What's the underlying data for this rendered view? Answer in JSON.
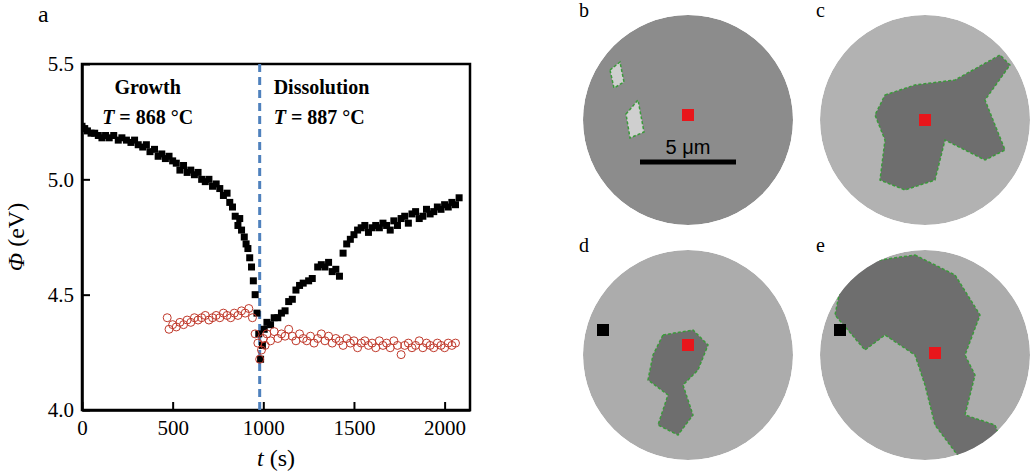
{
  "chart_data": {
    "type": "scatter",
    "panel_label": "a",
    "x_label": "t (s)",
    "y_label": "Φ (eV)",
    "xlim": [
      0,
      2140
    ],
    "ylim": [
      4.0,
      5.5
    ],
    "xticks": [
      0,
      500,
      1000,
      1500,
      2000
    ],
    "yticks": [
      {
        "value": 4.0,
        "label": "4.0"
      },
      4.5,
      {
        "value": 5.0,
        "label": "5.0"
      },
      5.5
    ],
    "regions": [
      {
        "label": "Growth",
        "temperature_label": "T = 868 °C"
      },
      {
        "label": "Dissolution",
        "temperature_label": "T = 887 °C"
      }
    ],
    "vlines": [
      {
        "x": 980,
        "color": "#4f81bd",
        "line_style": "dashed"
      }
    ],
    "series": [
      {
        "color": "#000000",
        "marker": "square",
        "x": [
          0,
          15,
          30,
          50,
          70,
          90,
          110,
          130,
          150,
          175,
          200,
          220,
          245,
          270,
          290,
          310,
          335,
          355,
          375,
          400,
          420,
          440,
          460,
          480,
          500,
          520,
          540,
          560,
          580,
          600,
          620,
          640,
          660,
          680,
          700,
          720,
          740,
          760,
          780,
          800,
          815,
          830,
          845,
          860,
          870,
          880,
          895,
          905,
          915,
          925,
          935,
          945,
          955,
          965,
          975,
          985,
          995,
          1005,
          1020,
          1040,
          1060,
          1080,
          1100,
          1120,
          1140,
          1160,
          1180,
          1200,
          1220,
          1250,
          1270,
          1300,
          1320,
          1340,
          1360,
          1380,
          1400,
          1420,
          1440,
          1460,
          1480,
          1500,
          1520,
          1540,
          1560,
          1580,
          1600,
          1620,
          1640,
          1660,
          1680,
          1700,
          1720,
          1740,
          1760,
          1780,
          1800,
          1820,
          1840,
          1860,
          1880,
          1900,
          1920,
          1940,
          1960,
          1980,
          2000,
          2020,
          2040,
          2060,
          2080
        ],
        "values": [
          5.23,
          5.22,
          5.21,
          5.2,
          5.2,
          5.19,
          5.18,
          5.19,
          5.18,
          5.19,
          5.17,
          5.18,
          5.17,
          5.16,
          5.17,
          5.15,
          5.14,
          5.15,
          5.12,
          5.13,
          5.1,
          5.11,
          5.09,
          5.1,
          5.08,
          5.07,
          5.04,
          5.06,
          5.03,
          5.04,
          5.02,
          5.03,
          5.0,
          4.99,
          5.0,
          4.97,
          4.98,
          4.96,
          4.93,
          4.94,
          4.9,
          4.88,
          4.84,
          4.8,
          4.83,
          4.78,
          4.75,
          4.72,
          4.7,
          4.66,
          4.62,
          4.56,
          4.5,
          4.42,
          4.33,
          4.22,
          4.28,
          4.35,
          4.38,
          4.37,
          4.4,
          4.4,
          4.42,
          4.43,
          4.47,
          4.48,
          4.52,
          4.54,
          4.55,
          4.56,
          4.57,
          4.62,
          4.63,
          4.62,
          4.64,
          4.6,
          4.61,
          4.58,
          4.68,
          4.72,
          4.74,
          4.76,
          4.78,
          4.79,
          4.8,
          4.77,
          4.79,
          4.8,
          4.79,
          4.81,
          4.8,
          4.78,
          4.82,
          4.8,
          4.83,
          4.84,
          4.81,
          4.85,
          4.86,
          4.83,
          4.84,
          4.87,
          4.85,
          4.86,
          4.88,
          4.87,
          4.89,
          4.88,
          4.9,
          4.89,
          4.92
        ]
      },
      {
        "color": "#c0392b",
        "marker": "open_circle",
        "x": [
          470,
          480,
          500,
          520,
          540,
          560,
          580,
          600,
          620,
          640,
          660,
          680,
          700,
          720,
          740,
          760,
          780,
          800,
          820,
          840,
          860,
          880,
          900,
          920,
          940,
          955,
          970,
          980,
          990,
          1000,
          1010,
          1020,
          1040,
          1060,
          1080,
          1100,
          1120,
          1140,
          1160,
          1180,
          1200,
          1220,
          1240,
          1260,
          1280,
          1300,
          1320,
          1340,
          1360,
          1380,
          1400,
          1420,
          1440,
          1460,
          1480,
          1500,
          1520,
          1540,
          1560,
          1580,
          1600,
          1620,
          1640,
          1660,
          1680,
          1700,
          1720,
          1740,
          1760,
          1780,
          1800,
          1820,
          1840,
          1860,
          1880,
          1900,
          1920,
          1940,
          1960,
          1980,
          2000,
          2020,
          2040,
          2060
        ],
        "values": [
          4.4,
          4.35,
          4.37,
          4.36,
          4.38,
          4.37,
          4.39,
          4.38,
          4.4,
          4.39,
          4.4,
          4.41,
          4.39,
          4.4,
          4.41,
          4.4,
          4.42,
          4.41,
          4.4,
          4.42,
          4.41,
          4.43,
          4.42,
          4.44,
          4.4,
          4.33,
          4.29,
          4.22,
          4.26,
          4.31,
          4.28,
          4.33,
          4.3,
          4.34,
          4.31,
          4.33,
          4.32,
          4.35,
          4.32,
          4.3,
          4.33,
          4.31,
          4.3,
          4.32,
          4.29,
          4.31,
          4.33,
          4.3,
          4.32,
          4.29,
          4.31,
          4.3,
          4.28,
          4.31,
          4.29,
          4.3,
          4.27,
          4.29,
          4.3,
          4.28,
          4.29,
          4.27,
          4.3,
          4.28,
          4.29,
          4.27,
          4.3,
          4.28,
          4.24,
          4.28,
          4.29,
          4.27,
          4.28,
          4.3,
          4.27,
          4.29,
          4.28,
          4.27,
          4.29,
          4.28,
          4.27,
          4.29,
          4.28,
          4.29
        ]
      }
    ]
  },
  "image_panels": {
    "labels": [
      "b",
      "c",
      "d",
      "e"
    ],
    "scale_bar_label": "5 μm"
  }
}
